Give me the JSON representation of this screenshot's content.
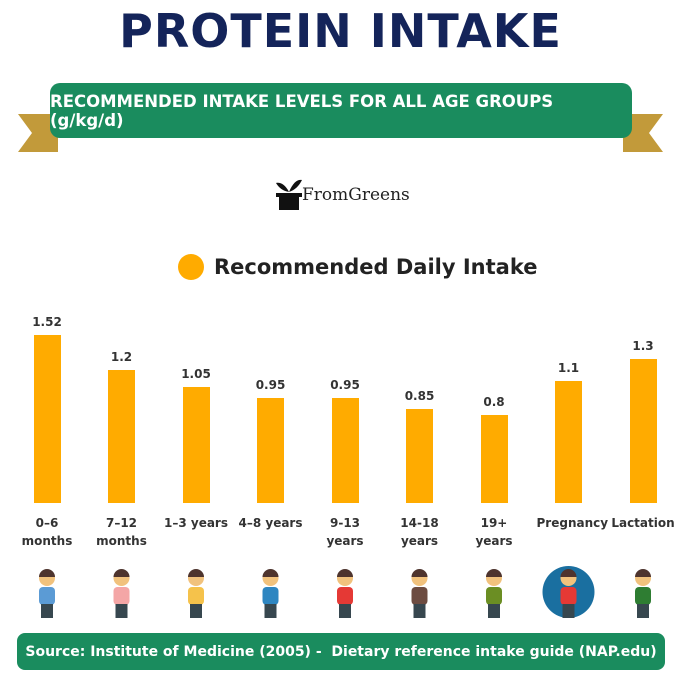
{
  "chart_data": {
    "type": "bar",
    "title": "PROTEIN INTAKE",
    "subtitle": "RECOMMENDED INTAKE LEVELS FOR ALL AGE GROUPS (g/kg/d)",
    "brand": "FromGreens",
    "categories": [
      "0–6 months",
      "7–12 months",
      "1–3 years",
      "4–8 years",
      "9-13 years",
      "14-18 years",
      "19+ years",
      "Pregnancy",
      "Lactation"
    ],
    "series": [
      {
        "name": "Recommended Daily Intake",
        "color": "#ffab00",
        "values": [
          1.52,
          1.2,
          1.05,
          0.95,
          0.95,
          0.85,
          0.8,
          1.1,
          1.3
        ]
      }
    ],
    "source": "Source: Institute of Medicine (2005) -  Dietary reference intake guide (NAP.edu)"
  }
}
